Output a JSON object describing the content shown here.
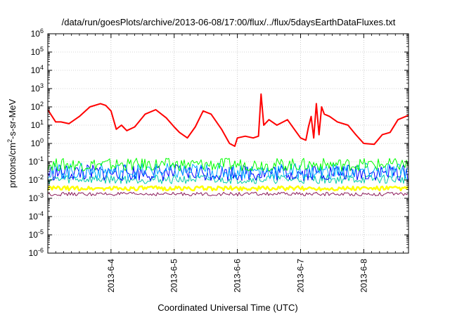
{
  "chart_data": {
    "type": "line",
    "title": "/data/run/goesPlots/archive/2013-06-08/17:00/flux/../flux/5daysEarthDataFluxes.txt",
    "xlabel": "Coordinated Universal Time (UTC)",
    "ylabel_base": "protons/cm",
    "ylabel_sup": "2",
    "ylabel_tail": "-s-sr-MeV",
    "y_scale": "log",
    "ylim_exponents": [
      -6,
      6
    ],
    "y_tick_base": "10",
    "y_tick_exponents": [
      "6",
      "5",
      "4",
      "3",
      "2",
      "1",
      "0",
      "-1",
      "-2",
      "-3",
      "-4",
      "-5",
      "-6"
    ],
    "xlim": [
      "2013-06-03 00:00",
      "2013-06-08 17:00"
    ],
    "x_ticks": [
      {
        "date": "2013-06-04 00:00",
        "label": "2013-6-4"
      },
      {
        "date": "2013-06-05 00:00",
        "label": "2013-6-5"
      },
      {
        "date": "2013-06-06 00:00",
        "label": "2013-6-6"
      },
      {
        "date": "2013-06-07 00:00",
        "label": "2013-6-7"
      },
      {
        "date": "2013-06-08 00:00",
        "label": "2013-6-8"
      }
    ],
    "grid": true,
    "series": [
      {
        "color": "#ff0000",
        "x": [
          "2013-06-03 00:00",
          "2013-06-03 03:00",
          "2013-06-03 05:00",
          "2013-06-03 08:00",
          "2013-06-03 12:00",
          "2013-06-03 16:00",
          "2013-06-03 20:00",
          "2013-06-03 22:00",
          "2013-06-04 00:00",
          "2013-06-04 02:00",
          "2013-06-04 04:00",
          "2013-06-04 06:00",
          "2013-06-04 09:00",
          "2013-06-04 13:00",
          "2013-06-04 17:00",
          "2013-06-04 21:00",
          "2013-06-05 00:00",
          "2013-06-05 02:00",
          "2013-06-05 05:00",
          "2013-06-05 08:00",
          "2013-06-05 11:00",
          "2013-06-05 14:00",
          "2013-06-05 18:00",
          "2013-06-05 21:00",
          "2013-06-05 23:00",
          "2013-06-06 00:00",
          "2013-06-06 03:00",
          "2013-06-06 06:00",
          "2013-06-06 08:00",
          "2013-06-06 09:00",
          "2013-06-06 10:00",
          "2013-06-06 12:00",
          "2013-06-06 15:00",
          "2013-06-06 19:00",
          "2013-06-06 22:00",
          "2013-06-07 00:00",
          "2013-06-07 02:00",
          "2013-06-07 03:00",
          "2013-06-07 04:00",
          "2013-06-07 05:00",
          "2013-06-07 06:00",
          "2013-06-07 07:00",
          "2013-06-07 08:00",
          "2013-06-07 09:00",
          "2013-06-07 11:00",
          "2013-06-07 14:00",
          "2013-06-07 18:00",
          "2013-06-07 21:00",
          "2013-06-08 00:00",
          "2013-06-08 04:00",
          "2013-06-08 07:00",
          "2013-06-08 10:00",
          "2013-06-08 13:00",
          "2013-06-08 17:00"
        ],
        "y": [
          70,
          15,
          15,
          12,
          30,
          100,
          150,
          120,
          60,
          6,
          10,
          5,
          8,
          40,
          70,
          25,
          8,
          4,
          2,
          8,
          60,
          40,
          6,
          1,
          0.7,
          2,
          2.5,
          2,
          2.5,
          500,
          10,
          20,
          10,
          20,
          5,
          2,
          1.5,
          8,
          30,
          2,
          150,
          3,
          100,
          40,
          30,
          15,
          10,
          3,
          1,
          0.9,
          3,
          4,
          20,
          35
        ]
      },
      {
        "color": "#00ff00",
        "x": [
          "2013-06-03 00:00",
          "2013-06-04 00:00",
          "2013-06-05 00:00",
          "2013-06-06 00:00",
          "2013-06-07 00:00",
          "2013-06-08 00:00",
          "2013-06-08 17:00"
        ],
        "y": [
          0.07,
          0.07,
          0.07,
          0.07,
          0.07,
          0.07,
          0.07
        ]
      },
      {
        "color": "#0000ff",
        "x": [
          "2013-06-03 00:00",
          "2013-06-04 00:00",
          "2013-06-05 00:00",
          "2013-06-06 00:00",
          "2013-06-07 00:00",
          "2013-06-08 00:00",
          "2013-06-08 17:00"
        ],
        "y": [
          0.025,
          0.025,
          0.025,
          0.025,
          0.025,
          0.025,
          0.025
        ]
      },
      {
        "color": "#00aaff",
        "x": [
          "2013-06-03 00:00",
          "2013-06-04 00:00",
          "2013-06-05 00:00",
          "2013-06-06 00:00",
          "2013-06-07 00:00",
          "2013-06-08 00:00",
          "2013-06-08 17:00"
        ],
        "y": [
          0.03,
          0.03,
          0.03,
          0.03,
          0.03,
          0.03,
          0.03
        ]
      },
      {
        "color": "#00ccaa",
        "x": [
          "2013-06-03 00:00",
          "2013-06-04 00:00",
          "2013-06-05 00:00",
          "2013-06-06 00:00",
          "2013-06-07 00:00",
          "2013-06-08 00:00",
          "2013-06-08 17:00"
        ],
        "y": [
          0.011,
          0.011,
          0.011,
          0.011,
          0.011,
          0.011,
          0.011
        ]
      },
      {
        "color": "#ffff00",
        "x": [
          "2013-06-03 00:00",
          "2013-06-04 00:00",
          "2013-06-05 00:00",
          "2013-06-06 00:00",
          "2013-06-07 00:00",
          "2013-06-08 00:00",
          "2013-06-08 17:00"
        ],
        "y": [
          0.0035,
          0.0035,
          0.0035,
          0.0035,
          0.0035,
          0.0035,
          0.0035
        ]
      },
      {
        "color": "#8b1a5a",
        "x": [
          "2013-06-03 00:00",
          "2013-06-04 00:00",
          "2013-06-05 00:00",
          "2013-06-06 00:00",
          "2013-06-07 00:00",
          "2013-06-08 00:00",
          "2013-06-08 17:00"
        ],
        "y": [
          0.0017,
          0.0017,
          0.0017,
          0.0017,
          0.0017,
          0.0017,
          0.0017
        ]
      }
    ]
  }
}
